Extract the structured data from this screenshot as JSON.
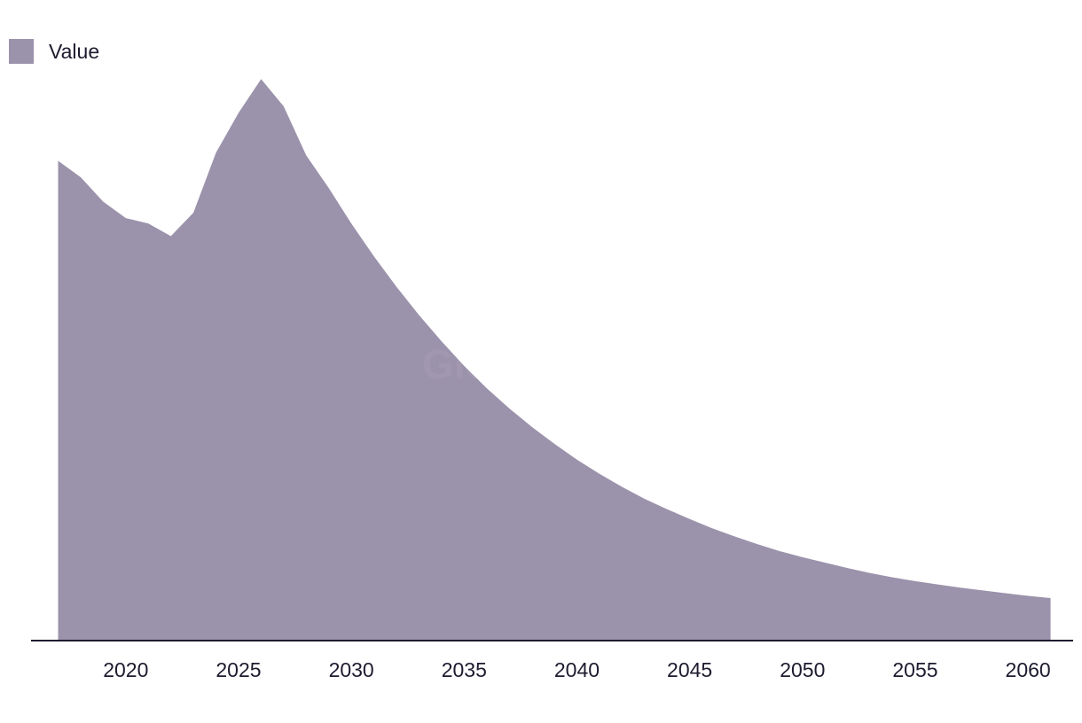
{
  "watermark": "GlobalData",
  "colors": {
    "area": "#9b92ab",
    "axis": "#1f1a2e",
    "text": "#1f1a2e"
  },
  "chart_data": {
    "type": "area",
    "legend": {
      "position": "top-left",
      "entries": [
        "Value"
      ]
    },
    "series": [
      {
        "name": "Value",
        "x": [
          2017,
          2018,
          2019,
          2020,
          2021,
          2022,
          2023,
          2024,
          2025,
          2026,
          2027,
          2028,
          2029,
          2030,
          2031,
          2032,
          2033,
          2034,
          2035,
          2036,
          2037,
          2038,
          2039,
          2040,
          2041,
          2042,
          2043,
          2044,
          2045,
          2046,
          2047,
          2048,
          2049,
          2050,
          2051,
          2052,
          2053,
          2054,
          2055,
          2056,
          2057,
          2058,
          2059,
          2060,
          2061
        ],
        "values": [
          85.0,
          82.0,
          77.5,
          74.5,
          73.5,
          71.2,
          75.5,
          86.5,
          93.8,
          100.0,
          95.0,
          86.0,
          80.0,
          73.5,
          67.5,
          61.9,
          56.7,
          51.9,
          47.4,
          43.3,
          39.6,
          36.2,
          33.1,
          30.2,
          27.6,
          25.2,
          23.0,
          21.1,
          19.3,
          17.6,
          16.1,
          14.7,
          13.4,
          12.3,
          11.3,
          10.3,
          9.4,
          8.6,
          7.9,
          7.3,
          6.7,
          6.2,
          5.7,
          5.2,
          4.8
        ]
      }
    ],
    "x_ticks": [
      2020,
      2025,
      2030,
      2035,
      2040,
      2045,
      2050,
      2055,
      2060
    ],
    "xlim": [
      2015.8,
      2062.0
    ],
    "ylim": [
      -3,
      108
    ],
    "grid": false
  }
}
